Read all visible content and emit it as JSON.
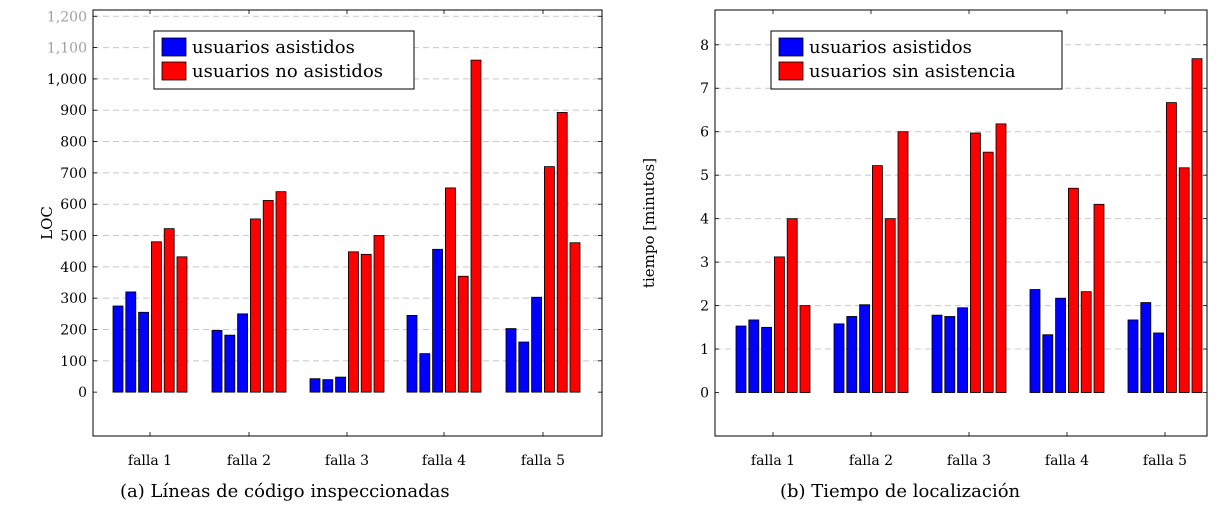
{
  "chart_data": [
    {
      "type": "bar",
      "caption": "(a)  Líneas de código inspeccionadas",
      "ylabel": "LOC",
      "xlabel": "",
      "categories": [
        "falla 1",
        "falla 2",
        "falla 3",
        "falla 4",
        "falla 5"
      ],
      "ylim": [
        -140,
        1220
      ],
      "yticks": [
        0,
        100,
        200,
        300,
        400,
        500,
        600,
        700,
        800,
        900,
        1000,
        1100,
        1200
      ],
      "ytick_labels": [
        "0",
        "100",
        "200",
        "300",
        "400",
        "500",
        "600",
        "700",
        "800",
        "900",
        "1,000",
        "1,100",
        "1,200"
      ],
      "grid": "horizontal dashed",
      "legend_position": "top-left",
      "series": [
        {
          "name": "usuarios asistidos",
          "color": "#0000ff",
          "values": [
            [
              275,
              320,
              255
            ],
            [
              197,
              182,
              250
            ],
            [
              43,
              40,
              48
            ],
            [
              245,
              123,
              456
            ],
            [
              203,
              160,
              303
            ]
          ]
        },
        {
          "name": "usuarios no asistidos",
          "color": "#ff0000",
          "values": [
            [
              480,
              522,
              432
            ],
            [
              553,
              612,
              640
            ],
            [
              448,
              440,
              500
            ],
            [
              652,
              370,
              1060
            ],
            [
              720,
              893,
              477
            ]
          ]
        }
      ]
    },
    {
      "type": "bar",
      "caption": "(b)  Tiempo de localización",
      "ylabel": "tiempo [minutos]",
      "xlabel": "",
      "categories": [
        "falla 1",
        "falla 2",
        "falla 3",
        "falla 4",
        "falla 5"
      ],
      "ylim": [
        -1.0,
        8.8
      ],
      "yticks": [
        0,
        1,
        2,
        3,
        4,
        5,
        6,
        7,
        8
      ],
      "ytick_labels": [
        "0",
        "1",
        "2",
        "3",
        "4",
        "5",
        "6",
        "7",
        "8"
      ],
      "grid": "horizontal dashed",
      "legend_position": "top-left",
      "series": [
        {
          "name": "usuarios asistidos",
          "color": "#0000ff",
          "values": [
            [
              1.53,
              1.67,
              1.5
            ],
            [
              1.58,
              1.75,
              2.02
            ],
            [
              1.78,
              1.75,
              1.95
            ],
            [
              2.37,
              1.33,
              2.17
            ],
            [
              1.67,
              2.07,
              1.37
            ]
          ]
        },
        {
          "name": "usuarios sin asistencia",
          "color": "#ff0000",
          "values": [
            [
              3.12,
              4.0,
              2.0
            ],
            [
              5.22,
              4.0,
              6.0
            ],
            [
              5.97,
              5.53,
              6.18
            ],
            [
              4.7,
              2.32,
              4.33
            ],
            [
              6.67,
              5.17,
              7.68
            ]
          ]
        }
      ]
    }
  ]
}
